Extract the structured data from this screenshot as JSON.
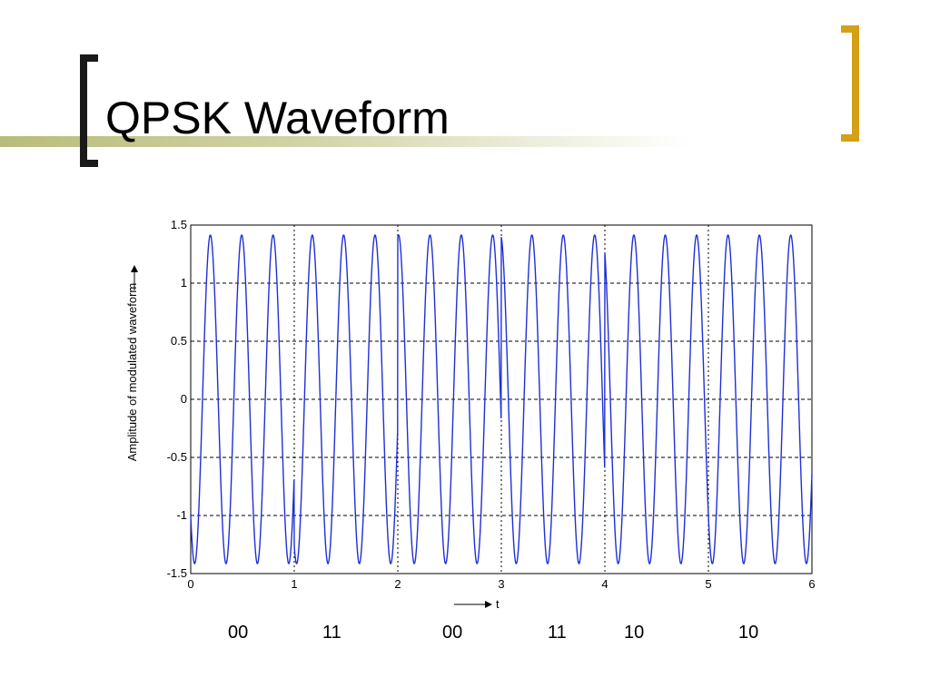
{
  "slide": {
    "title": "QPSK Waveform"
  },
  "bits": [
    "00",
    "11",
    "00",
    "11",
    "10",
    "10"
  ],
  "chart_data": {
    "type": "line",
    "title": "",
    "xlabel": "t",
    "ylabel": "Amplitude of modulated waveform",
    "xlim": [
      0,
      6
    ],
    "ylim": [
      -1.5,
      1.5
    ],
    "xticks": [
      0,
      1,
      2,
      3,
      4,
      5,
      6
    ],
    "yticks": [
      -1.5,
      -1,
      -0.5,
      0,
      0.5,
      1,
      1.5
    ],
    "ytick_labels": [
      "-1.5",
      "-1",
      "-0.5",
      "0",
      "0.5",
      "1",
      "1.5"
    ],
    "grid": true,
    "series": [
      {
        "amplitude": 1.414,
        "cycles_per_unit": 3.3,
        "symbol_phases_deg": [
          135,
          45,
          135,
          45,
          315,
          315
        ],
        "color": "#1f2fd6"
      }
    ]
  },
  "colors": {
    "accent_gold": "#d4a017",
    "bracket_dark": "#1a1a1a",
    "title_bar": "#b8bc7a",
    "waveform": "#1f2fd6"
  }
}
